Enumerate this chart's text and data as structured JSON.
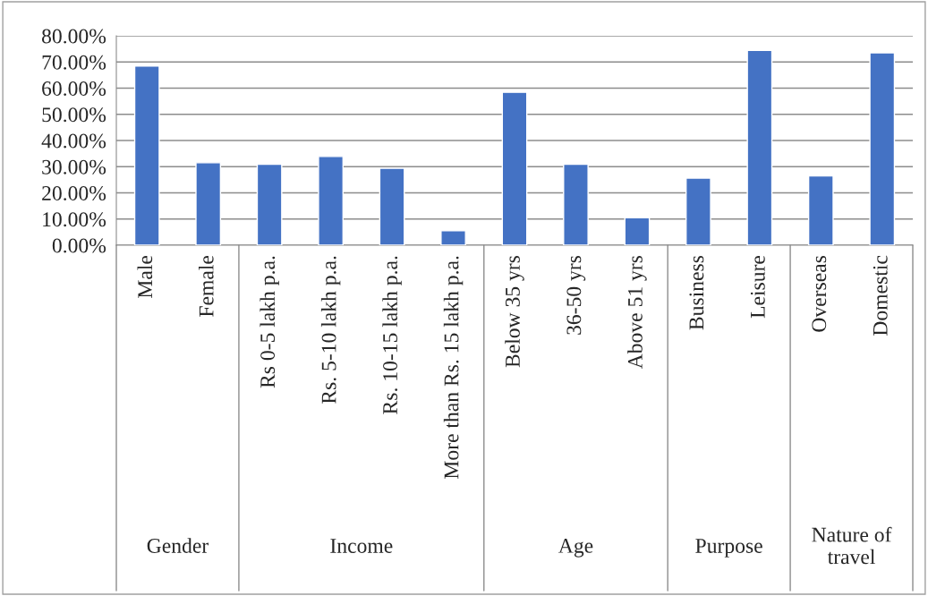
{
  "chart_data": {
    "type": "bar",
    "categories": [
      "Male",
      "Female",
      "Rs 0-5 lakh p.a.",
      "Rs. 5-10 lakh p.a.",
      "Rs. 10-15 lakh p.a.",
      "More than Rs. 15 lakh p.a.",
      "Below 35 yrs",
      "36-50 yrs",
      "Above 51 yrs",
      "Business",
      "Leisure",
      "Overseas",
      "Domestic"
    ],
    "values": [
      68.4,
      31.5,
      30.9,
      33.9,
      29.4,
      5.5,
      58.4,
      30.9,
      10.5,
      25.6,
      74.4,
      26.5,
      73.5
    ],
    "color": "#4472c4",
    "ylim": [
      0,
      80
    ],
    "yticks": [
      {
        "value": 0,
        "label": "0.00%"
      },
      {
        "value": 10,
        "label": "10.00%"
      },
      {
        "value": 20,
        "label": "20.00%"
      },
      {
        "value": 30,
        "label": "30.00%"
      },
      {
        "value": 40,
        "label": "40.00%"
      },
      {
        "value": 50,
        "label": "50.00%"
      },
      {
        "value": 60,
        "label": "60.00%"
      },
      {
        "value": 70,
        "label": "70.00%"
      },
      {
        "value": 80,
        "label": "80.00%"
      }
    ],
    "grid": "y",
    "annotations": [
      "Gender",
      "Income",
      "Age",
      "Purpose",
      "Nature of\ntravel"
    ]
  }
}
